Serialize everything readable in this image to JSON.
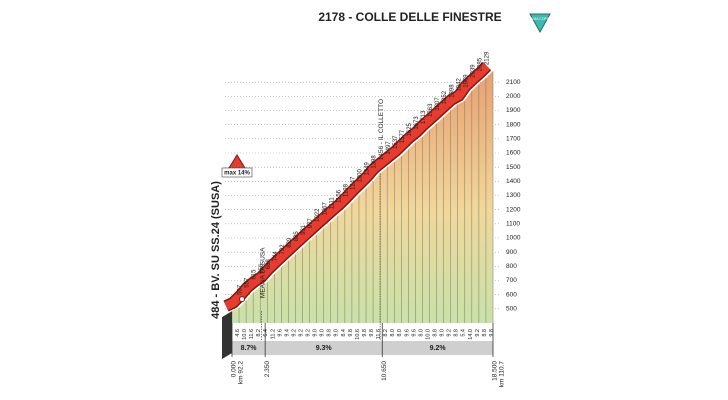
{
  "chart_data": {
    "type": "area",
    "title": "2178 - COLLE DELLE FINESTRE",
    "summit_label": "CIMA COPPI",
    "start_label": "484 - BV. SU SS.24 (SUSA)",
    "max_gradient": "max 14%",
    "race_km": [
      "km 92.2",
      "km 110.7"
    ],
    "annotations": [
      {
        "x": 2.1,
        "text": "MEANA DI SUSA"
      },
      {
        "x": 10.5,
        "text": "1456 - IL COLLETTO"
      }
    ],
    "x": [
      0,
      0.5,
      1,
      1.5,
      2,
      2.5,
      3,
      3.5,
      4,
      4.5,
      5,
      5.5,
      6,
      6.5,
      7,
      7.5,
      8,
      8.5,
      9,
      9.5,
      10,
      10.5,
      11,
      11.5,
      12,
      12.5,
      13,
      13.5,
      14,
      14.5,
      15,
      15.5,
      16,
      16.5,
      17,
      17.5,
      18,
      18.5
    ],
    "series": [
      {
        "color": "#e63b2e",
        "values": [
          484,
          507,
          557,
          615,
          656,
          688,
          744,
          792,
          839,
          885,
          931,
          977,
          1022,
          1067,
          1111,
          1156,
          1198,
          1247,
          1300,
          1349,
          1398,
          1456,
          1497,
          1537,
          1577,
          1625,
          1673,
          1713,
          1763,
          1807,
          1852,
          1898,
          1942,
          1969,
          2039,
          2085,
          2129,
          2178
        ]
      }
    ],
    "segment_labels": [
      "4.6",
      "10.0",
      "11.6",
      "8.2",
      "6.4",
      "11.2",
      "9.6",
      "9.4",
      "9.2",
      "9.2",
      "9.2",
      "9.0",
      "9.0",
      "8.8",
      "9.0",
      "8.4",
      "9.8",
      "10.6",
      "9.8",
      "9.8",
      "11.6",
      "8.2",
      "8.0",
      "8.0",
      "9.6",
      "9.6",
      "8.0",
      "10.0",
      "8.8",
      "9.0",
      "9.2",
      "8.8",
      "5.4",
      "14.0",
      "9.2",
      "8.8",
      "9.8"
    ],
    "gradient_sections": [
      "8.7%",
      "9.3%",
      "9.2%"
    ],
    "xlim": [
      0,
      18.5
    ],
    "xticks": [
      {
        "value": 0,
        "label": "0.000"
      },
      {
        "value": 2.35,
        "label": "2.350"
      },
      {
        "value": 10.65,
        "label": "10.650"
      },
      {
        "value": 18.5,
        "label": "18.500"
      }
    ],
    "ylim": [
      400,
      2200
    ],
    "yticks": [
      500,
      600,
      700,
      800,
      900,
      1000,
      1100,
      1200,
      1300,
      1400,
      1500,
      1600,
      1700,
      1800,
      1900,
      2000,
      2100
    ],
    "grid": true
  }
}
